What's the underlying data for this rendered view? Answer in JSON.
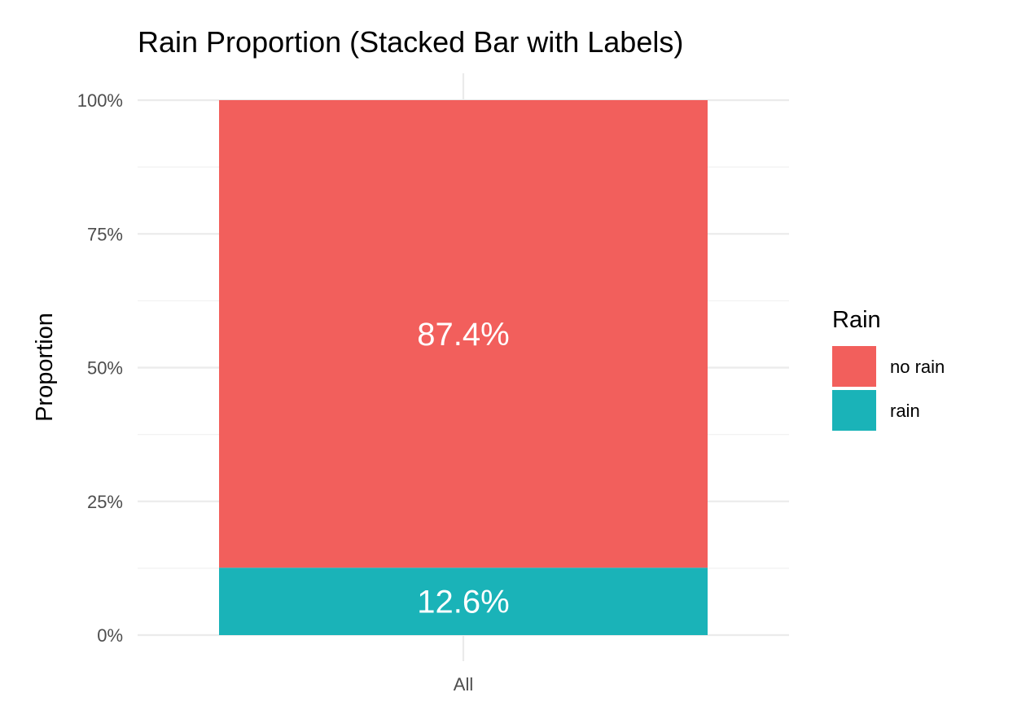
{
  "chart_data": {
    "type": "bar",
    "stacked": true,
    "title": "Rain Proportion (Stacked Bar with Labels)",
    "xlabel": "",
    "ylabel": "Proportion",
    "categories": [
      "All"
    ],
    "series": [
      {
        "name": "no rain",
        "values": [
          0.874
        ],
        "color": "#F25F5C",
        "label": "87.4%"
      },
      {
        "name": "rain",
        "values": [
          0.126
        ],
        "color": "#1AB3B8",
        "label": "12.6%"
      }
    ],
    "ylim": [
      0,
      1
    ],
    "yticks": [
      {
        "value": 0,
        "label": "0%"
      },
      {
        "value": 0.25,
        "label": "25%"
      },
      {
        "value": 0.5,
        "label": "50%"
      },
      {
        "value": 0.75,
        "label": "75%"
      },
      {
        "value": 1,
        "label": "100%"
      }
    ],
    "legend": {
      "title": "Rain",
      "position": "right",
      "entries": [
        "no rain",
        "rain"
      ]
    },
    "grid": true
  }
}
